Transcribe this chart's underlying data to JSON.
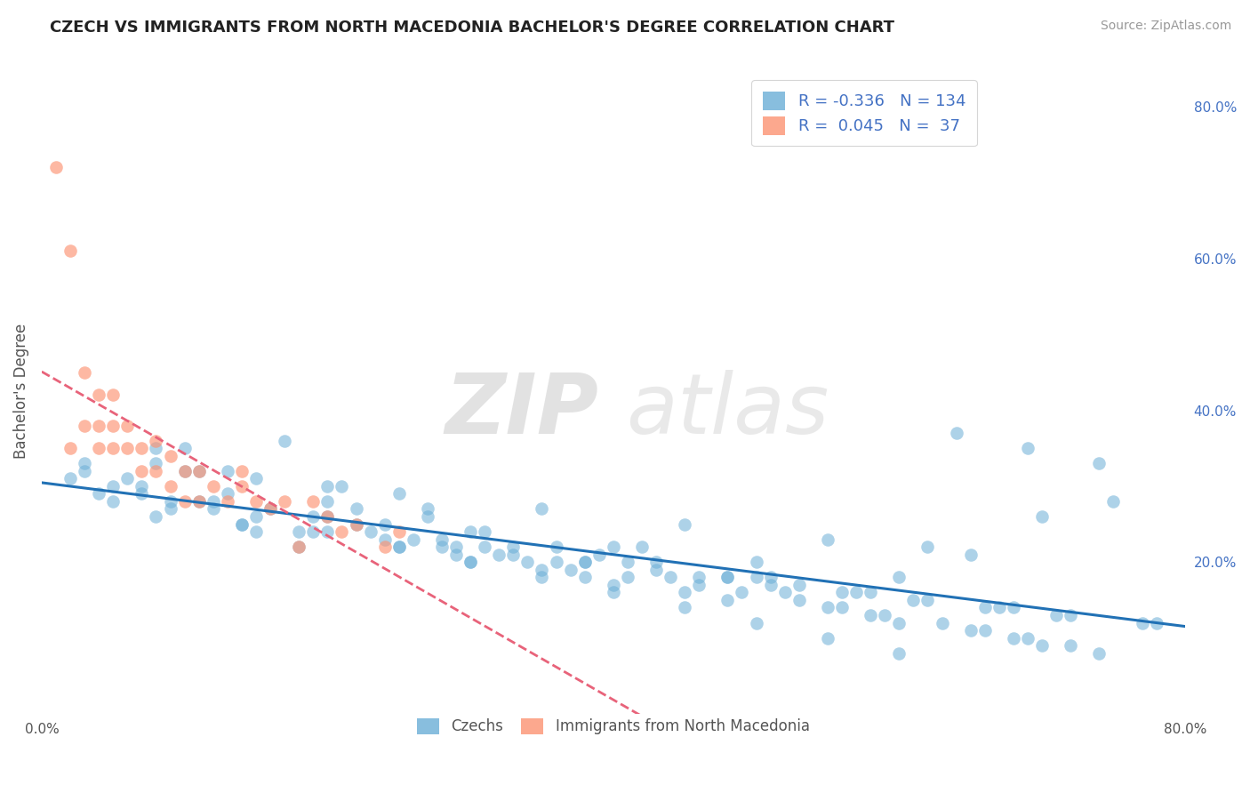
{
  "title": "CZECH VS IMMIGRANTS FROM NORTH MACEDONIA BACHELOR'S DEGREE CORRELATION CHART",
  "source": "Source: ZipAtlas.com",
  "ylabel": "Bachelor's Degree",
  "xlim": [
    0.0,
    0.8
  ],
  "ylim": [
    0.0,
    0.85
  ],
  "czech_color": "#6baed6",
  "macedonian_color": "#fc9272",
  "czech_line_color": "#2171b5",
  "macedonian_line_color": "#e8637a",
  "czech_R": -0.336,
  "czech_N": 134,
  "macedonian_R": 0.045,
  "macedonian_N": 37,
  "legend_entries": [
    "Czechs",
    "Immigrants from North Macedonia"
  ],
  "background_color": "#ffffff",
  "grid_color": "#cccccc",
  "czech_scatter_x": [
    0.02,
    0.05,
    0.03,
    0.08,
    0.1,
    0.12,
    0.1,
    0.15,
    0.13,
    0.18,
    0.2,
    0.22,
    0.2,
    0.25,
    0.27,
    0.24,
    0.3,
    0.28,
    0.32,
    0.35,
    0.33,
    0.38,
    0.36,
    0.4,
    0.42,
    0.45,
    0.44,
    0.48,
    0.5,
    0.52,
    0.55,
    0.58,
    0.6,
    0.62,
    0.65,
    0.68,
    0.7,
    0.05,
    0.07,
    0.09,
    0.11,
    0.14,
    0.16,
    0.19,
    0.21,
    0.23,
    0.26,
    0.29,
    0.31,
    0.34,
    0.37,
    0.39,
    0.41,
    0.43,
    0.46,
    0.49,
    0.51,
    0.53,
    0.56,
    0.59,
    0.63,
    0.66,
    0.69,
    0.72,
    0.74,
    0.06,
    0.08,
    0.12,
    0.17,
    0.22,
    0.27,
    0.31,
    0.36,
    0.41,
    0.46,
    0.51,
    0.56,
    0.61,
    0.66,
    0.71,
    0.04,
    0.09,
    0.14,
    0.19,
    0.24,
    0.29,
    0.33,
    0.38,
    0.43,
    0.48,
    0.53,
    0.57,
    0.62,
    0.67,
    0.72,
    0.77,
    0.03,
    0.07,
    0.11,
    0.15,
    0.2,
    0.25,
    0.3,
    0.35,
    0.4,
    0.45,
    0.5,
    0.55,
    0.6,
    0.64,
    0.69,
    0.74,
    0.15,
    0.25,
    0.35,
    0.45,
    0.55,
    0.65,
    0.75,
    0.2,
    0.3,
    0.4,
    0.5,
    0.6,
    0.7,
    0.18,
    0.28,
    0.38,
    0.48,
    0.58,
    0.68,
    0.78,
    0.08,
    0.13
  ],
  "czech_scatter_y": [
    0.31,
    0.28,
    0.33,
    0.26,
    0.35,
    0.27,
    0.32,
    0.24,
    0.29,
    0.22,
    0.3,
    0.25,
    0.28,
    0.22,
    0.27,
    0.25,
    0.2,
    0.23,
    0.21,
    0.19,
    0.22,
    0.18,
    0.2,
    0.17,
    0.22,
    0.16,
    0.18,
    0.15,
    0.18,
    0.16,
    0.14,
    0.13,
    0.12,
    0.22,
    0.11,
    0.1,
    0.09,
    0.3,
    0.29,
    0.28,
    0.32,
    0.25,
    0.27,
    0.26,
    0.3,
    0.24,
    0.23,
    0.21,
    0.22,
    0.2,
    0.19,
    0.21,
    0.18,
    0.2,
    0.17,
    0.16,
    0.18,
    0.15,
    0.14,
    0.13,
    0.12,
    0.11,
    0.1,
    0.09,
    0.08,
    0.31,
    0.33,
    0.28,
    0.36,
    0.27,
    0.26,
    0.24,
    0.22,
    0.2,
    0.18,
    0.17,
    0.16,
    0.15,
    0.14,
    0.13,
    0.29,
    0.27,
    0.25,
    0.24,
    0.23,
    0.22,
    0.21,
    0.2,
    0.19,
    0.18,
    0.17,
    0.16,
    0.15,
    0.14,
    0.13,
    0.12,
    0.32,
    0.3,
    0.28,
    0.26,
    0.24,
    0.22,
    0.2,
    0.18,
    0.16,
    0.14,
    0.12,
    0.1,
    0.08,
    0.37,
    0.35,
    0.33,
    0.31,
    0.29,
    0.27,
    0.25,
    0.23,
    0.21,
    0.28,
    0.26,
    0.24,
    0.22,
    0.2,
    0.18,
    0.26,
    0.24,
    0.22,
    0.2,
    0.18,
    0.16,
    0.14,
    0.12,
    0.35,
    0.32
  ],
  "mac_scatter_x": [
    0.01,
    0.02,
    0.02,
    0.03,
    0.03,
    0.04,
    0.04,
    0.04,
    0.05,
    0.05,
    0.05,
    0.06,
    0.06,
    0.07,
    0.07,
    0.08,
    0.08,
    0.09,
    0.09,
    0.1,
    0.1,
    0.11,
    0.11,
    0.12,
    0.13,
    0.14,
    0.14,
    0.15,
    0.16,
    0.17,
    0.18,
    0.19,
    0.2,
    0.21,
    0.22,
    0.24,
    0.25
  ],
  "mac_scatter_y": [
    0.72,
    0.35,
    0.61,
    0.38,
    0.45,
    0.35,
    0.38,
    0.42,
    0.35,
    0.38,
    0.42,
    0.35,
    0.38,
    0.32,
    0.35,
    0.32,
    0.36,
    0.3,
    0.34,
    0.28,
    0.32,
    0.28,
    0.32,
    0.3,
    0.28,
    0.3,
    0.32,
    0.28,
    0.27,
    0.28,
    0.22,
    0.28,
    0.26,
    0.24,
    0.25,
    0.22,
    0.24
  ]
}
